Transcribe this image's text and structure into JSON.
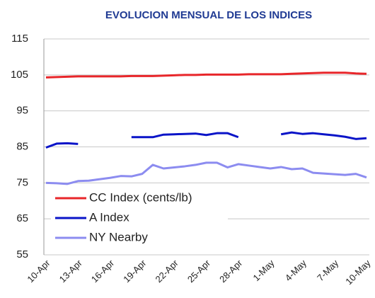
{
  "chart_data": {
    "type": "line",
    "title": "EVOLUCION MENSUAL DE LOS INDICES",
    "categories": [
      "10-Apr",
      null,
      null,
      "13-Apr",
      null,
      null,
      "16-Apr",
      null,
      null,
      "19-Apr",
      null,
      null,
      "22-Apr",
      null,
      null,
      "25-Apr",
      null,
      null,
      "28-Apr",
      null,
      null,
      "1-May",
      null,
      null,
      "4-May",
      null,
      null,
      "7-May",
      null,
      null,
      "10-May"
    ],
    "series": [
      {
        "name": "CC Index (cents/lb)",
        "color": "#e8262a",
        "values": [
          104.3,
          104.4,
          104.5,
          104.6,
          104.6,
          104.6,
          104.6,
          104.6,
          104.7,
          104.7,
          104.7,
          104.8,
          104.9,
          105.0,
          105.0,
          105.1,
          105.1,
          105.1,
          105.1,
          105.2,
          105.2,
          105.2,
          105.2,
          105.3,
          105.4,
          105.5,
          105.6,
          105.6,
          105.6,
          105.4,
          105.3
        ]
      },
      {
        "name": "A Index",
        "color": "#0a14c8",
        "values": [
          84.8,
          85.9,
          86.0,
          85.8,
          null,
          null,
          null,
          null,
          87.7,
          87.7,
          87.7,
          88.4,
          88.5,
          88.6,
          88.7,
          88.3,
          88.8,
          88.8,
          87.7,
          null,
          null,
          null,
          88.5,
          89.0,
          88.6,
          88.8,
          88.5,
          88.2,
          87.8,
          87.2,
          87.4
        ]
      },
      {
        "name": "NY Nearby",
        "color": "#8c8cf0",
        "values": [
          75.0,
          74.9,
          74.7,
          75.5,
          75.6,
          76.0,
          76.4,
          76.9,
          76.8,
          77.5,
          80.0,
          79.0,
          79.3,
          79.6,
          80.0,
          80.6,
          80.6,
          79.3,
          80.2,
          79.8,
          79.4,
          79.0,
          79.4,
          78.8,
          79.0,
          77.8,
          77.6,
          77.4,
          77.2,
          77.5,
          76.5
        ]
      }
    ],
    "ylim": [
      55,
      115
    ],
    "yticks": [
      55,
      65,
      75,
      85,
      95,
      105,
      115
    ],
    "grid": true,
    "legend": "lower-left"
  }
}
